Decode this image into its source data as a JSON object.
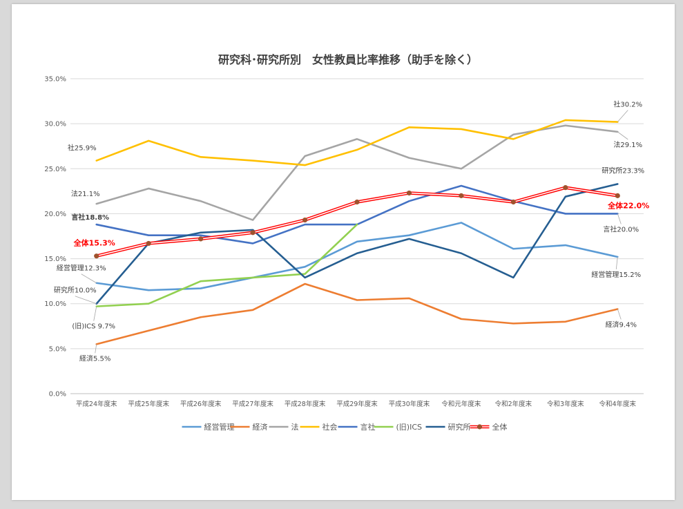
{
  "chart_data": {
    "type": "line",
    "title": "研究科･研究所別　女性教員比率推移（助手を除く）",
    "xlabel": "",
    "ylabel": "",
    "ylim": [
      0,
      35
    ],
    "ytick_step": 5,
    "ytick_labels": [
      "0.0%",
      "5.0%",
      "10.0%",
      "15.0%",
      "20.0%",
      "25.0%",
      "30.0%",
      "35.0%"
    ],
    "grid": true,
    "legend_position": "bottom",
    "categories": [
      "平成24年度末",
      "平成25年度末",
      "平成26年度末",
      "平成27年度末",
      "平成28年度末",
      "平成29年度末",
      "平成30年度末",
      "令和元年度末",
      "令和2年度末",
      "令和3年度末",
      "令和4年度末"
    ],
    "series": [
      {
        "name": "経営管理",
        "color": "#5b9bd5",
        "values": [
          12.3,
          11.5,
          11.7,
          12.9,
          14.1,
          16.9,
          17.6,
          19.0,
          16.1,
          16.5,
          15.2
        ]
      },
      {
        "name": "経済",
        "color": "#ed7d31",
        "values": [
          5.5,
          7.0,
          8.5,
          9.3,
          12.2,
          10.4,
          10.6,
          8.3,
          7.8,
          8.0,
          9.4
        ]
      },
      {
        "name": "法",
        "color": "#a5a5a5",
        "values": [
          21.1,
          22.8,
          21.4,
          19.3,
          26.4,
          28.3,
          26.2,
          25.0,
          28.8,
          29.8,
          29.1
        ]
      },
      {
        "name": "社会",
        "color": "#ffc000",
        "values": [
          25.9,
          28.1,
          26.3,
          25.9,
          25.4,
          27.1,
          29.6,
          29.4,
          28.3,
          30.4,
          30.2
        ]
      },
      {
        "name": "言社",
        "color": "#4472c4",
        "values": [
          18.8,
          17.6,
          17.6,
          16.7,
          18.8,
          18.8,
          21.4,
          23.1,
          21.4,
          20.0,
          20.0
        ]
      },
      {
        "name": "(旧)ICS",
        "color": "#92d050",
        "values": [
          9.7,
          10.0,
          12.5,
          12.9,
          13.3,
          18.8,
          null,
          null,
          null,
          null,
          null
        ]
      },
      {
        "name": "研究所",
        "color": "#255e91",
        "values": [
          10.0,
          16.7,
          17.9,
          18.2,
          12.9,
          15.6,
          17.2,
          15.6,
          12.9,
          21.9,
          23.3
        ]
      },
      {
        "name": "全体",
        "color": "#ff0000",
        "marker_color": "#a0522d",
        "values": [
          15.3,
          16.7,
          17.2,
          17.9,
          19.3,
          21.3,
          22.3,
          22.0,
          21.3,
          22.9,
          22.0
        ]
      }
    ],
    "annotations": [
      {
        "text": "社25.9%",
        "series": "社会",
        "index": 0
      },
      {
        "text": "法21.1%",
        "series": "法",
        "index": 0
      },
      {
        "text": "言社18.8%",
        "series": "言社",
        "index": 0
      },
      {
        "text": "全体15.3%",
        "series": "全体",
        "index": 0,
        "red": true
      },
      {
        "text": "経営管理12.3%",
        "series": "経営管理",
        "index": 0
      },
      {
        "text": "研究所10.0%",
        "series": "研究所",
        "index": 0
      },
      {
        "text": "(旧)ICS 9.7%",
        "series": "(旧)ICS",
        "index": 0
      },
      {
        "text": "経済5.5%",
        "series": "経済",
        "index": 0
      },
      {
        "text": "社30.2%",
        "series": "社会",
        "index": 10
      },
      {
        "text": "法29.1%",
        "series": "法",
        "index": 10
      },
      {
        "text": "研究所23.3%",
        "series": "研究所",
        "index": 10
      },
      {
        "text": "全体22.0%",
        "series": "全体",
        "index": 10,
        "red": true
      },
      {
        "text": "言社20.0%",
        "series": "言社",
        "index": 10
      },
      {
        "text": "経営管理15.2%",
        "series": "経営管理",
        "index": 10
      },
      {
        "text": "経済9.4%",
        "series": "経済",
        "index": 10
      }
    ]
  }
}
